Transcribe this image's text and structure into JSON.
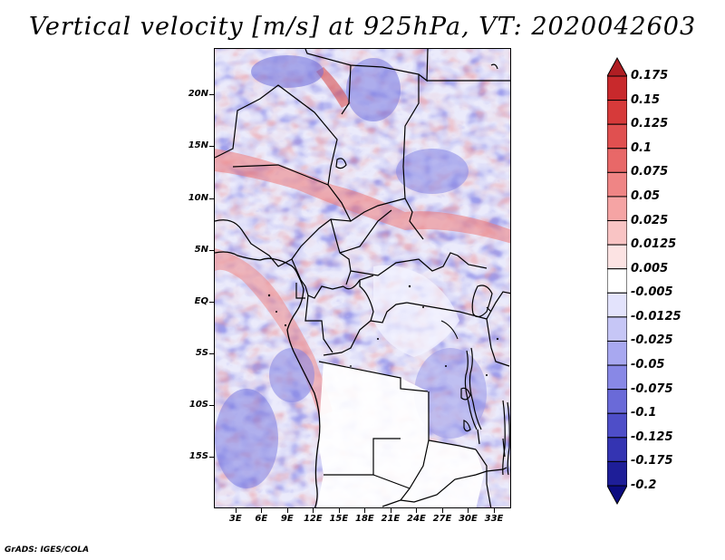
{
  "title": "Vertical velocity [m/s] at 925hPa, VT: 2020042603",
  "footer": "GrADS: IGES/COLA",
  "map": {
    "lat_labels": [
      "20N",
      "15N",
      "10N",
      "5N",
      "EQ",
      "5S",
      "10S",
      "15S"
    ],
    "lon_labels": [
      "3E",
      "6E",
      "9E",
      "12E",
      "15E",
      "18E",
      "21E",
      "24E",
      "27E",
      "30E",
      "33E"
    ],
    "lat_range": [
      -20,
      24.5
    ],
    "lon_range": [
      0.5,
      35
    ]
  },
  "colorbar": {
    "labels": [
      "0.175",
      "0.15",
      "0.125",
      "0.1",
      "0.075",
      "0.05",
      "0.025",
      "0.0125",
      "0.005",
      "-0.005",
      "-0.0125",
      "-0.025",
      "-0.05",
      "-0.075",
      "-0.1",
      "-0.125",
      "-0.175",
      "-0.2"
    ],
    "colors": [
      "#b01e23",
      "#c8292c",
      "#d63a3a",
      "#e05050",
      "#e86868",
      "#ef8585",
      "#f5a4a4",
      "#f9c4c4",
      "#fce3e3",
      "#ffffff",
      "#e3e3fc",
      "#c6c6f6",
      "#a8a8f0",
      "#8888e6",
      "#6a6ad8",
      "#4e4ec8",
      "#3434b2",
      "#1e1e98",
      "#0c0c80"
    ]
  }
}
